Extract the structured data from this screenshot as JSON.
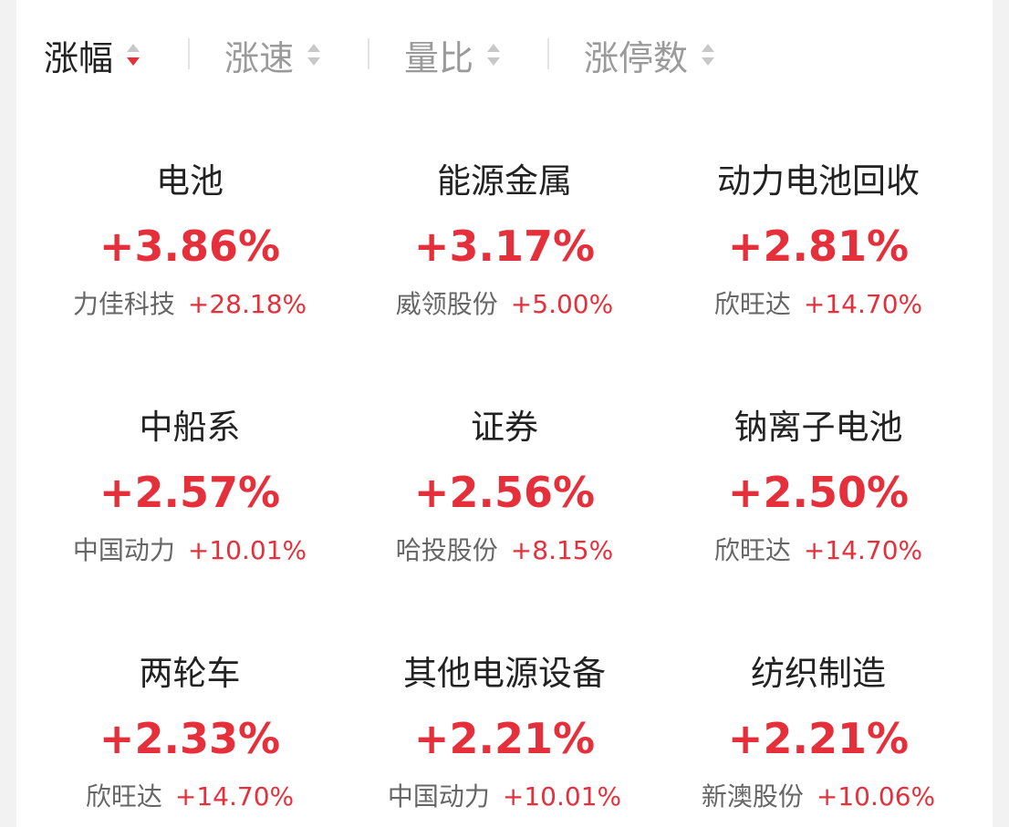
{
  "tabs": [
    {
      "label": "涨幅",
      "active": true
    },
    {
      "label": "涨速",
      "active": false
    },
    {
      "label": "量比",
      "active": false
    },
    {
      "label": "涨停数",
      "active": false
    }
  ],
  "cells": [
    {
      "name": "电池",
      "change": "+3.86%",
      "leader": "力佳科技",
      "leader_change": "+28.18%"
    },
    {
      "name": "能源金属",
      "change": "+3.17%",
      "leader": "威领股份",
      "leader_change": "+5.00%"
    },
    {
      "name": "动力电池回收",
      "change": "+2.81%",
      "leader": "欣旺达",
      "leader_change": "+14.70%"
    },
    {
      "name": "中船系",
      "change": "+2.57%",
      "leader": "中国动力",
      "leader_change": "+10.01%"
    },
    {
      "name": "证券",
      "change": "+2.56%",
      "leader": "哈投股份",
      "leader_change": "+8.15%"
    },
    {
      "name": "钠离子电池",
      "change": "+2.50%",
      "leader": "欣旺达",
      "leader_change": "+14.70%"
    },
    {
      "name": "两轮车",
      "change": "+2.33%",
      "leader": "欣旺达",
      "leader_change": "+14.70%"
    },
    {
      "name": "其他电源设备",
      "change": "+2.21%",
      "leader": "中国动力",
      "leader_change": "+10.01%"
    },
    {
      "name": "纺织制造",
      "change": "+2.21%",
      "leader": "新澳股份",
      "leader_change": "+10.06%"
    }
  ]
}
